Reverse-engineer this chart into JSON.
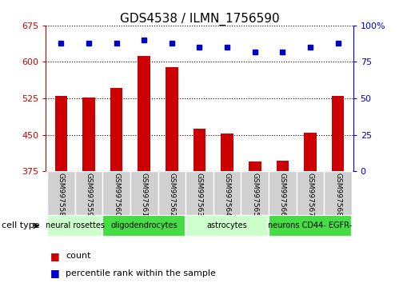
{
  "title": "GDS4538 / ILMN_1756590",
  "samples": [
    "GSM997558",
    "GSM997559",
    "GSM997560",
    "GSM997561",
    "GSM997562",
    "GSM997563",
    "GSM997564",
    "GSM997565",
    "GSM997566",
    "GSM997567",
    "GSM997568"
  ],
  "counts": [
    530,
    527,
    547,
    612,
    590,
    462,
    452,
    395,
    397,
    455,
    530
  ],
  "percentiles": [
    88,
    88,
    88,
    90,
    88,
    85,
    85,
    82,
    82,
    85,
    88
  ],
  "ylim_left": [
    375,
    675
  ],
  "ylim_right": [
    0,
    100
  ],
  "yticks_left": [
    375,
    450,
    525,
    600,
    675
  ],
  "yticks_right": [
    0,
    25,
    50,
    75,
    100
  ],
  "bar_color": "#cc0000",
  "dot_color": "#0000cc",
  "cell_types": [
    {
      "label": "neural rosettes",
      "start": 0,
      "end": 2,
      "color": "#ccffcc"
    },
    {
      "label": "oligodendrocytes",
      "start": 2,
      "end": 5,
      "color": "#44dd44"
    },
    {
      "label": "astrocytes",
      "start": 5,
      "end": 8,
      "color": "#ccffcc"
    },
    {
      "label": "neurons CD44- EGFR-",
      "start": 8,
      "end": 11,
      "color": "#44dd44"
    }
  ],
  "legend_count_label": "count",
  "legend_percentile_label": "percentile rank within the sample",
  "cell_type_label": "cell type",
  "sample_box_color": "#d0d0d0",
  "title_fontsize": 11,
  "tick_fontsize": 8,
  "label_fontsize": 6.5,
  "ct_fontsize": 7,
  "legend_fontsize": 8
}
